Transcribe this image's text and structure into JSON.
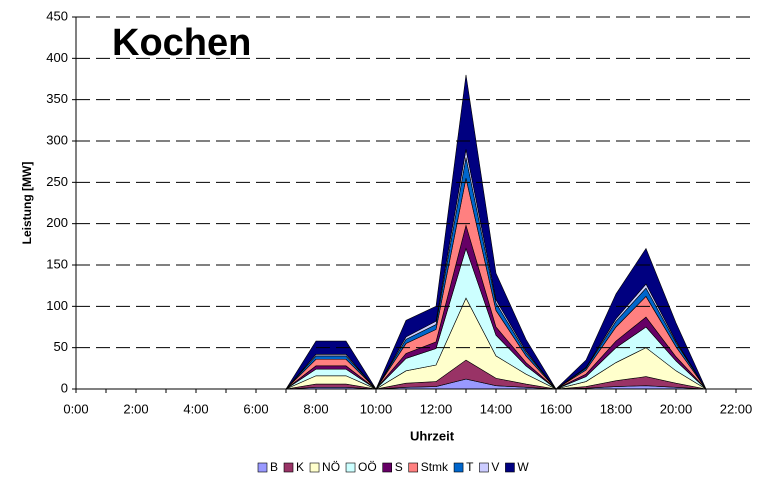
{
  "chart_data": {
    "type": "stacked_area",
    "title": "Kochen",
    "x_label": "Uhrzeit",
    "y_label": "Leistung [MW]",
    "categories": [
      "0:00",
      null,
      "2:00",
      null,
      "4:00",
      null,
      "6:00",
      null,
      "8:00",
      null,
      "10:00",
      null,
      "12:00",
      null,
      "14:00",
      null,
      "16:00",
      null,
      "18:00",
      null,
      "20:00",
      null,
      "22:00"
    ],
    "ylim": [
      0,
      450
    ],
    "yticks": [
      0,
      50,
      100,
      150,
      200,
      250,
      300,
      350,
      400,
      450
    ],
    "grid": true,
    "legend": "bottom",
    "series": [
      {
        "name": "B",
        "color": "#9999ff",
        "values": [
          0,
          0,
          0,
          0,
          0,
          0,
          0,
          0,
          2,
          2,
          0,
          2,
          3,
          12,
          4,
          2,
          0,
          1,
          3,
          4,
          2,
          0,
          0
        ]
      },
      {
        "name": "K",
        "color": "#993366",
        "values": [
          0,
          0,
          0,
          0,
          0,
          0,
          0,
          0,
          4,
          4,
          0,
          5,
          6,
          23,
          9,
          4,
          0,
          2,
          7,
          11,
          5,
          0,
          0
        ]
      },
      {
        "name": "NÖ",
        "color": "#ffffcc",
        "values": [
          0,
          0,
          0,
          0,
          0,
          0,
          0,
          0,
          10,
          10,
          0,
          15,
          20,
          75,
          27,
          12,
          0,
          6,
          22,
          35,
          15,
          0,
          0
        ]
      },
      {
        "name": "OÖ",
        "color": "#ccffff",
        "values": [
          0,
          0,
          0,
          0,
          0,
          0,
          0,
          0,
          8,
          8,
          0,
          15,
          20,
          60,
          25,
          10,
          0,
          6,
          18,
          25,
          12,
          0,
          0
        ]
      },
      {
        "name": "S",
        "color": "#660066",
        "values": [
          0,
          0,
          0,
          0,
          0,
          0,
          0,
          0,
          4,
          4,
          0,
          6,
          8,
          28,
          10,
          4,
          0,
          3,
          8,
          12,
          5,
          0,
          0
        ]
      },
      {
        "name": "Stmk",
        "color": "#ff8080",
        "values": [
          0,
          0,
          0,
          0,
          0,
          0,
          0,
          0,
          8,
          8,
          0,
          12,
          15,
          57,
          20,
          8,
          0,
          5,
          17,
          25,
          12,
          0,
          0
        ]
      },
      {
        "name": "T",
        "color": "#0066cc",
        "values": [
          0,
          0,
          0,
          0,
          0,
          0,
          0,
          0,
          4,
          4,
          0,
          5,
          6,
          25,
          9,
          4,
          0,
          2,
          7,
          10,
          5,
          0,
          0
        ]
      },
      {
        "name": "V",
        "color": "#ccccff",
        "values": [
          0,
          0,
          0,
          0,
          0,
          0,
          0,
          0,
          2,
          2,
          0,
          3,
          4,
          10,
          4,
          2,
          0,
          1,
          3,
          5,
          2,
          0,
          0
        ]
      },
      {
        "name": "W",
        "color": "#000080",
        "values": [
          0,
          0,
          0,
          0,
          0,
          0,
          0,
          0,
          16,
          16,
          0,
          20,
          18,
          90,
          32,
          14,
          0,
          9,
          30,
          43,
          22,
          0,
          0
        ]
      }
    ]
  }
}
